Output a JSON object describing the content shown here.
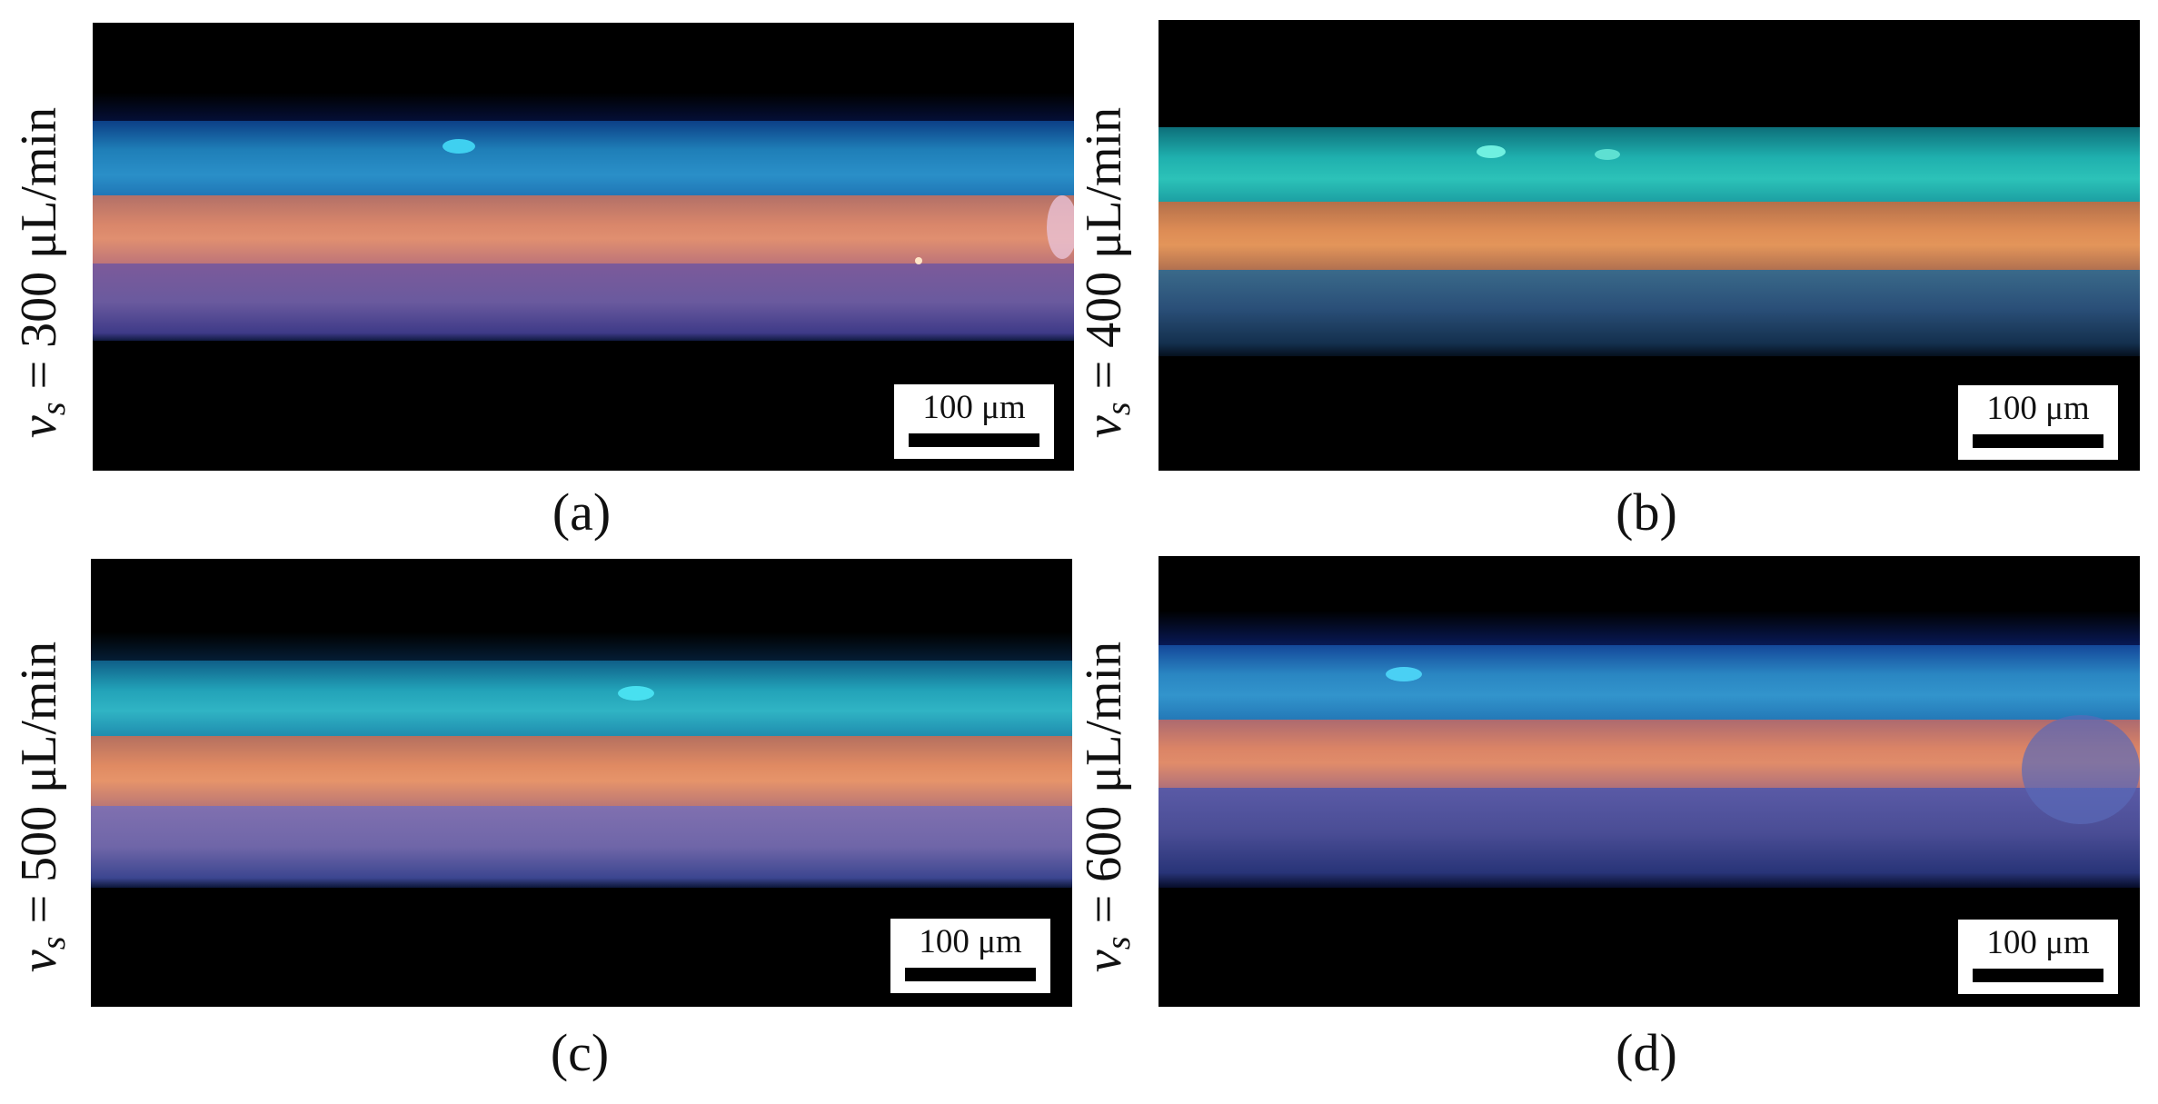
{
  "panels": [
    {
      "id": "a",
      "letter": "(a)",
      "label_var": "v",
      "label_sub": "s",
      "label_rest": " = 300 μL/min",
      "scale": "100 μm",
      "colors": {
        "top": "#1f7fb8",
        "middle": "#d9866a",
        "bottom": "#6a5a9e"
      }
    },
    {
      "id": "b",
      "letter": "(b)",
      "label_var": "v",
      "label_sub": "s",
      "label_rest": " = 400 μL/min",
      "scale": "100 μm",
      "colors": {
        "top": "#1fb0ae",
        "middle": "#dd8c55",
        "bottom": "#2a4f78"
      }
    },
    {
      "id": "c",
      "letter": "(c)",
      "label_var": "v",
      "label_sub": "s",
      "label_rest": " = 500 μL/min",
      "scale": "100 μm",
      "colors": {
        "top": "#22a2b8",
        "middle": "#e08a62",
        "bottom": "#6f66a8"
      }
    },
    {
      "id": "d",
      "letter": "(d)",
      "label_var": "v",
      "label_sub": "s",
      "label_rest": " = 600 μL/min",
      "scale": "100 μm",
      "colors": {
        "top": "#2a86c2",
        "middle": "#db8466",
        "bottom": "#4a4d95"
      }
    }
  ]
}
